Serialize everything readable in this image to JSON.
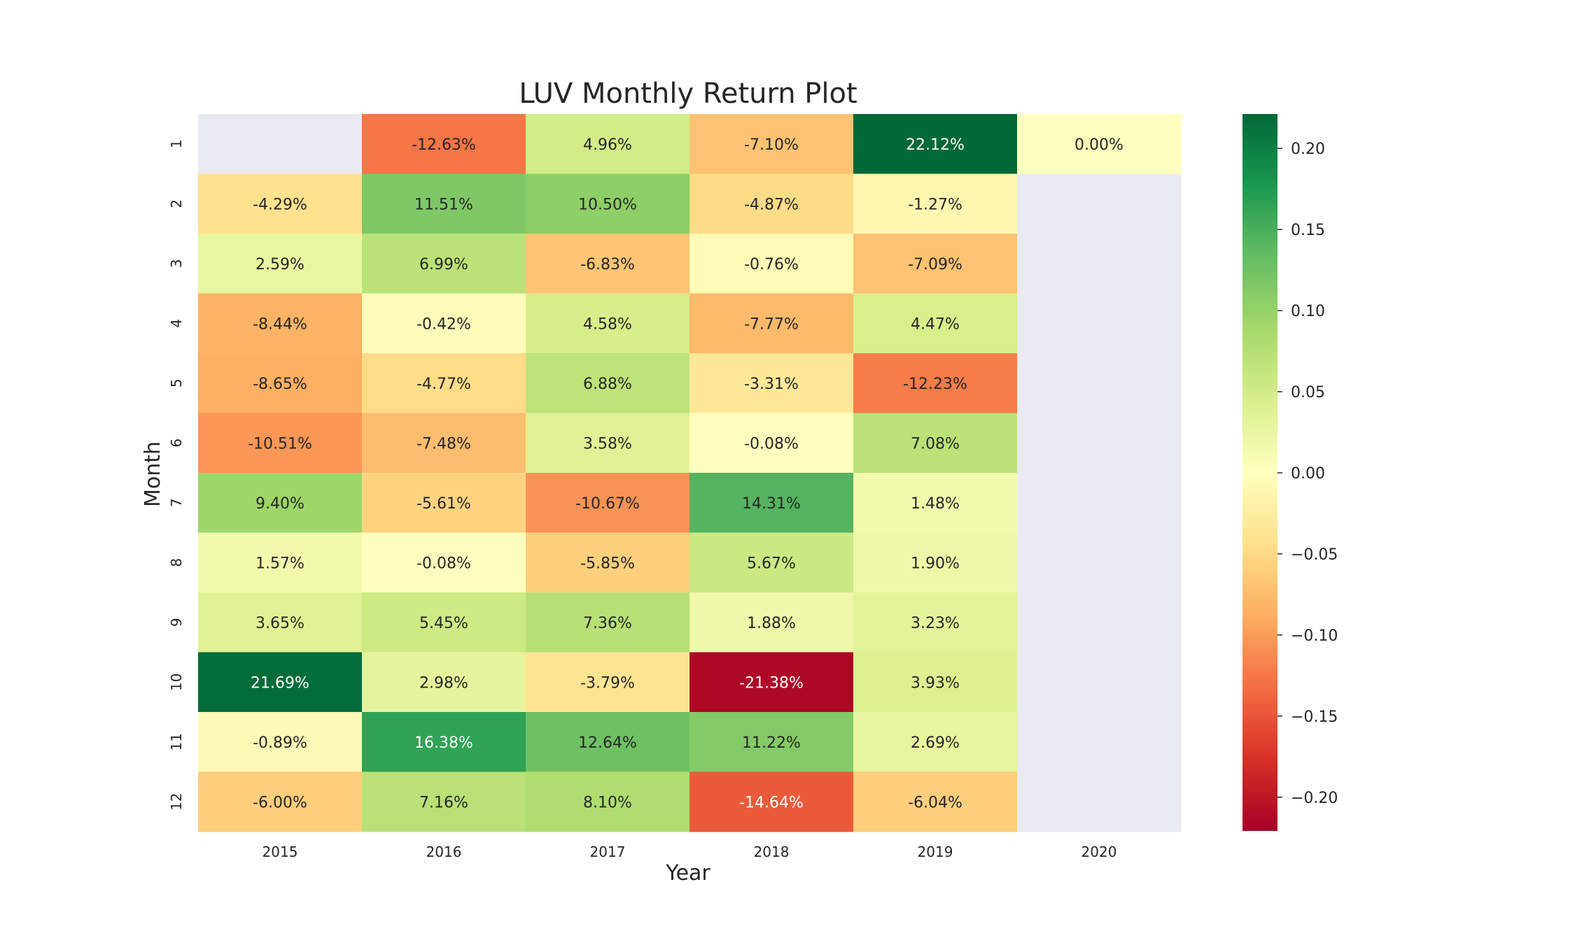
{
  "chart_data": {
    "type": "heatmap",
    "title": "LUV Monthly Return Plot",
    "xlabel": "Year",
    "ylabel": "Month",
    "x_categories": [
      "2015",
      "2016",
      "2017",
      "2018",
      "2019",
      "2020"
    ],
    "y_categories": [
      "1",
      "2",
      "3",
      "4",
      "5",
      "6",
      "7",
      "8",
      "9",
      "10",
      "11",
      "12"
    ],
    "values": [
      [
        null,
        -0.1263,
        0.0496,
        -0.071,
        0.2212,
        0.0
      ],
      [
        -0.0429,
        0.1151,
        0.105,
        -0.0487,
        -0.0127,
        null
      ],
      [
        0.0259,
        0.0699,
        -0.0683,
        -0.0076,
        -0.0709,
        null
      ],
      [
        -0.0844,
        -0.0042,
        0.0458,
        -0.0777,
        0.0447,
        null
      ],
      [
        -0.0865,
        -0.0477,
        0.0688,
        -0.0331,
        -0.1223,
        null
      ],
      [
        -0.1051,
        -0.0748,
        0.0358,
        -0.0008,
        0.0708,
        null
      ],
      [
        0.094,
        -0.0561,
        -0.1067,
        0.1431,
        0.0148,
        null
      ],
      [
        0.0157,
        -0.0008,
        -0.0585,
        0.0567,
        0.019,
        null
      ],
      [
        0.0365,
        0.0545,
        0.0736,
        0.0188,
        0.0323,
        null
      ],
      [
        0.2169,
        0.0298,
        -0.0379,
        -0.2138,
        0.0393,
        null
      ],
      [
        -0.0089,
        0.1638,
        0.1264,
        0.1122,
        0.0269,
        null
      ],
      [
        -0.06,
        0.0716,
        0.081,
        -0.1464,
        -0.0604,
        null
      ]
    ],
    "labels": [
      [
        null,
        "-12.63%",
        "4.96%",
        "-7.10%",
        "22.12%",
        "0.00%"
      ],
      [
        "-4.29%",
        "11.51%",
        "10.50%",
        "-4.87%",
        "-1.27%",
        null
      ],
      [
        "2.59%",
        "6.99%",
        "-6.83%",
        "-0.76%",
        "-7.09%",
        null
      ],
      [
        "-8.44%",
        "-0.42%",
        "4.58%",
        "-7.77%",
        "4.47%",
        null
      ],
      [
        "-8.65%",
        "-4.77%",
        "6.88%",
        "-3.31%",
        "-12.23%",
        null
      ],
      [
        "-10.51%",
        "-7.48%",
        "3.58%",
        "-0.08%",
        "7.08%",
        null
      ],
      [
        "9.40%",
        "-5.61%",
        "-10.67%",
        "14.31%",
        "1.48%",
        null
      ],
      [
        "1.57%",
        "-0.08%",
        "-5.85%",
        "5.67%",
        "1.90%",
        null
      ],
      [
        "3.65%",
        "5.45%",
        "7.36%",
        "1.88%",
        "3.23%",
        null
      ],
      [
        "21.69%",
        "2.98%",
        "-3.79%",
        "-21.38%",
        "3.93%",
        null
      ],
      [
        "-0.89%",
        "16.38%",
        "12.64%",
        "11.22%",
        "2.69%",
        null
      ],
      [
        "-6.00%",
        "7.16%",
        "8.10%",
        "-14.64%",
        "-6.04%",
        null
      ]
    ],
    "color_scale": {
      "colormap": "RdYlGn",
      "vmin": -0.2212,
      "vmax": 0.2212,
      "missing_color": "#eaeaf2",
      "stops": [
        "#a50026",
        "#d73027",
        "#f46d43",
        "#fdae61",
        "#fee08b",
        "#ffffbf",
        "#d9ef8b",
        "#a6d96a",
        "#66bd63",
        "#1a9850",
        "#006837"
      ]
    },
    "colorbar": {
      "ticks": [
        -0.2,
        -0.15,
        -0.1,
        -0.05,
        0.0,
        0.05,
        0.1,
        0.15,
        0.2
      ],
      "tick_labels": [
        "−0.20",
        "−0.15",
        "−0.10",
        "−0.05",
        "0.00",
        "0.05",
        "0.10",
        "0.15",
        "0.20"
      ]
    }
  }
}
